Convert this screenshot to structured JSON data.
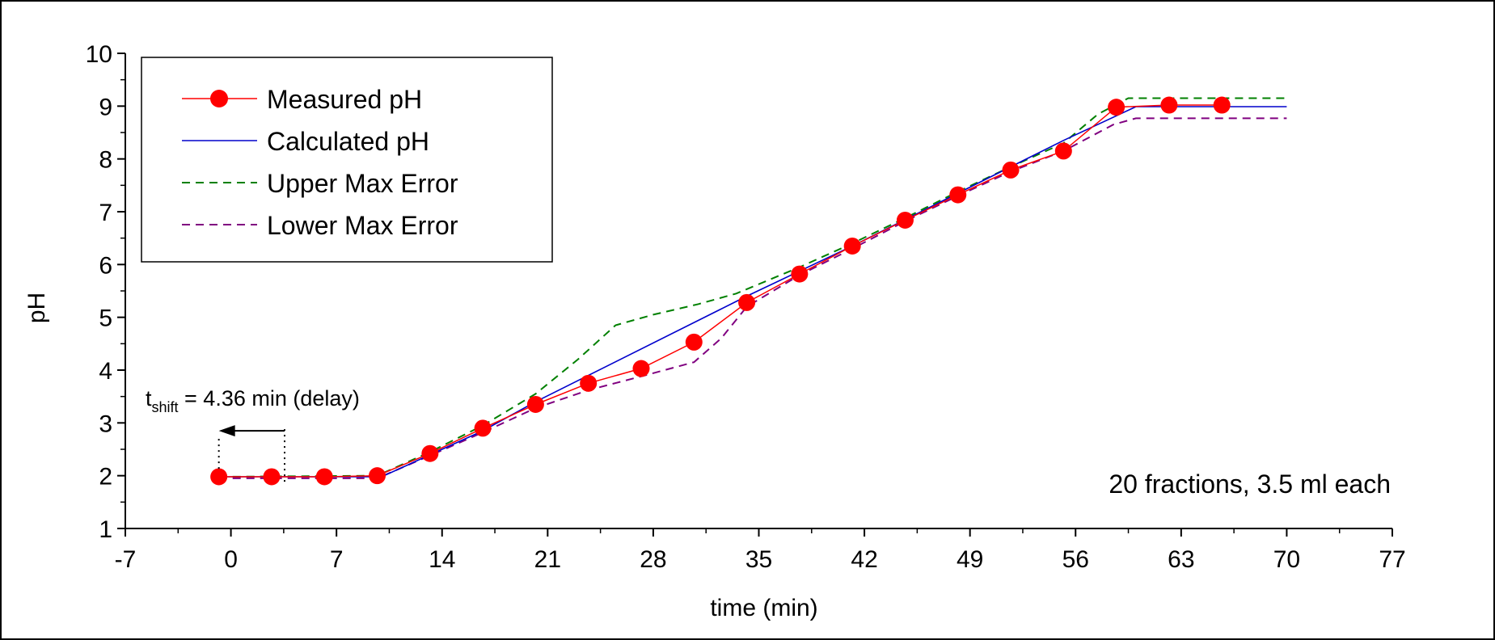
{
  "chart_data": {
    "type": "line",
    "title": "",
    "xlabel": "time (min)",
    "ylabel": "pH",
    "xlim": [
      -7,
      77
    ],
    "ylim": [
      1,
      10
    ],
    "xticks": [
      -7,
      0,
      7,
      14,
      21,
      28,
      35,
      42,
      49,
      56,
      63,
      70,
      77
    ],
    "yticks": [
      1,
      2,
      3,
      4,
      5,
      6,
      7,
      8,
      9,
      10
    ],
    "grid": false,
    "legend_position": "top-left",
    "series": [
      {
        "name": "Measured pH",
        "style": "line-with-markers",
        "color": "#ff0000",
        "x": [
          -0.8,
          2.7,
          6.2,
          9.7,
          13.2,
          16.7,
          20.2,
          23.7,
          27.2,
          30.7,
          34.2,
          37.7,
          41.2,
          44.7,
          48.2,
          51.7,
          55.2,
          58.7,
          62.2,
          65.7
        ],
        "y": [
          1.98,
          1.98,
          1.98,
          2.0,
          2.42,
          2.9,
          3.35,
          3.75,
          4.03,
          4.53,
          5.28,
          5.82,
          6.35,
          6.84,
          7.32,
          7.79,
          8.15,
          8.98,
          9.02,
          9.02
        ]
      },
      {
        "name": "Calculated pH",
        "style": "solid",
        "color": "#0000cc",
        "x": [
          -0.8,
          10.0,
          16.7,
          20.2,
          34.2,
          41.2,
          48.2,
          55.2,
          60.0,
          70.0
        ],
        "y": [
          1.98,
          1.98,
          2.85,
          3.4,
          5.4,
          6.35,
          7.35,
          8.35,
          8.99,
          8.99
        ]
      },
      {
        "name": "Upper Max Error",
        "style": "dashed",
        "color": "#008000",
        "x": [
          -0.8,
          9.7,
          13.2,
          16.7,
          20.2,
          23.0,
          25.5,
          28.0,
          31.0,
          33.5,
          37.7,
          41.2,
          44.7,
          48.2,
          51.7,
          55.2,
          57.5,
          59.5,
          70.0
        ],
        "y": [
          1.98,
          2.0,
          2.45,
          2.95,
          3.55,
          4.2,
          4.85,
          5.05,
          5.25,
          5.45,
          5.95,
          6.4,
          6.88,
          7.38,
          7.85,
          8.3,
          8.85,
          9.15,
          9.15
        ]
      },
      {
        "name": "Lower Max Error",
        "style": "dashed",
        "color": "#800080",
        "x": [
          -0.8,
          9.7,
          13.2,
          16.7,
          20.2,
          23.7,
          27.2,
          30.7,
          32.5,
          34.2,
          37.7,
          41.2,
          44.7,
          48.2,
          51.7,
          55.2,
          58.5,
          60.0,
          70.0
        ],
        "y": [
          1.95,
          1.95,
          2.38,
          2.82,
          3.28,
          3.62,
          3.88,
          4.15,
          4.6,
          5.2,
          5.8,
          6.3,
          6.82,
          7.3,
          7.76,
          8.15,
          8.65,
          8.77,
          8.77
        ]
      }
    ],
    "annotations": {
      "shift_label_main": "t",
      "shift_label_sub": "shift",
      "shift_label_rest": " = 4.36 min (delay)",
      "shift_value_min": 4.36,
      "shift_from_x": -0.8,
      "shift_to_x": 3.56,
      "shift_y": 2.85,
      "fractions_note": "20 fractions, 3.5 ml each"
    }
  }
}
